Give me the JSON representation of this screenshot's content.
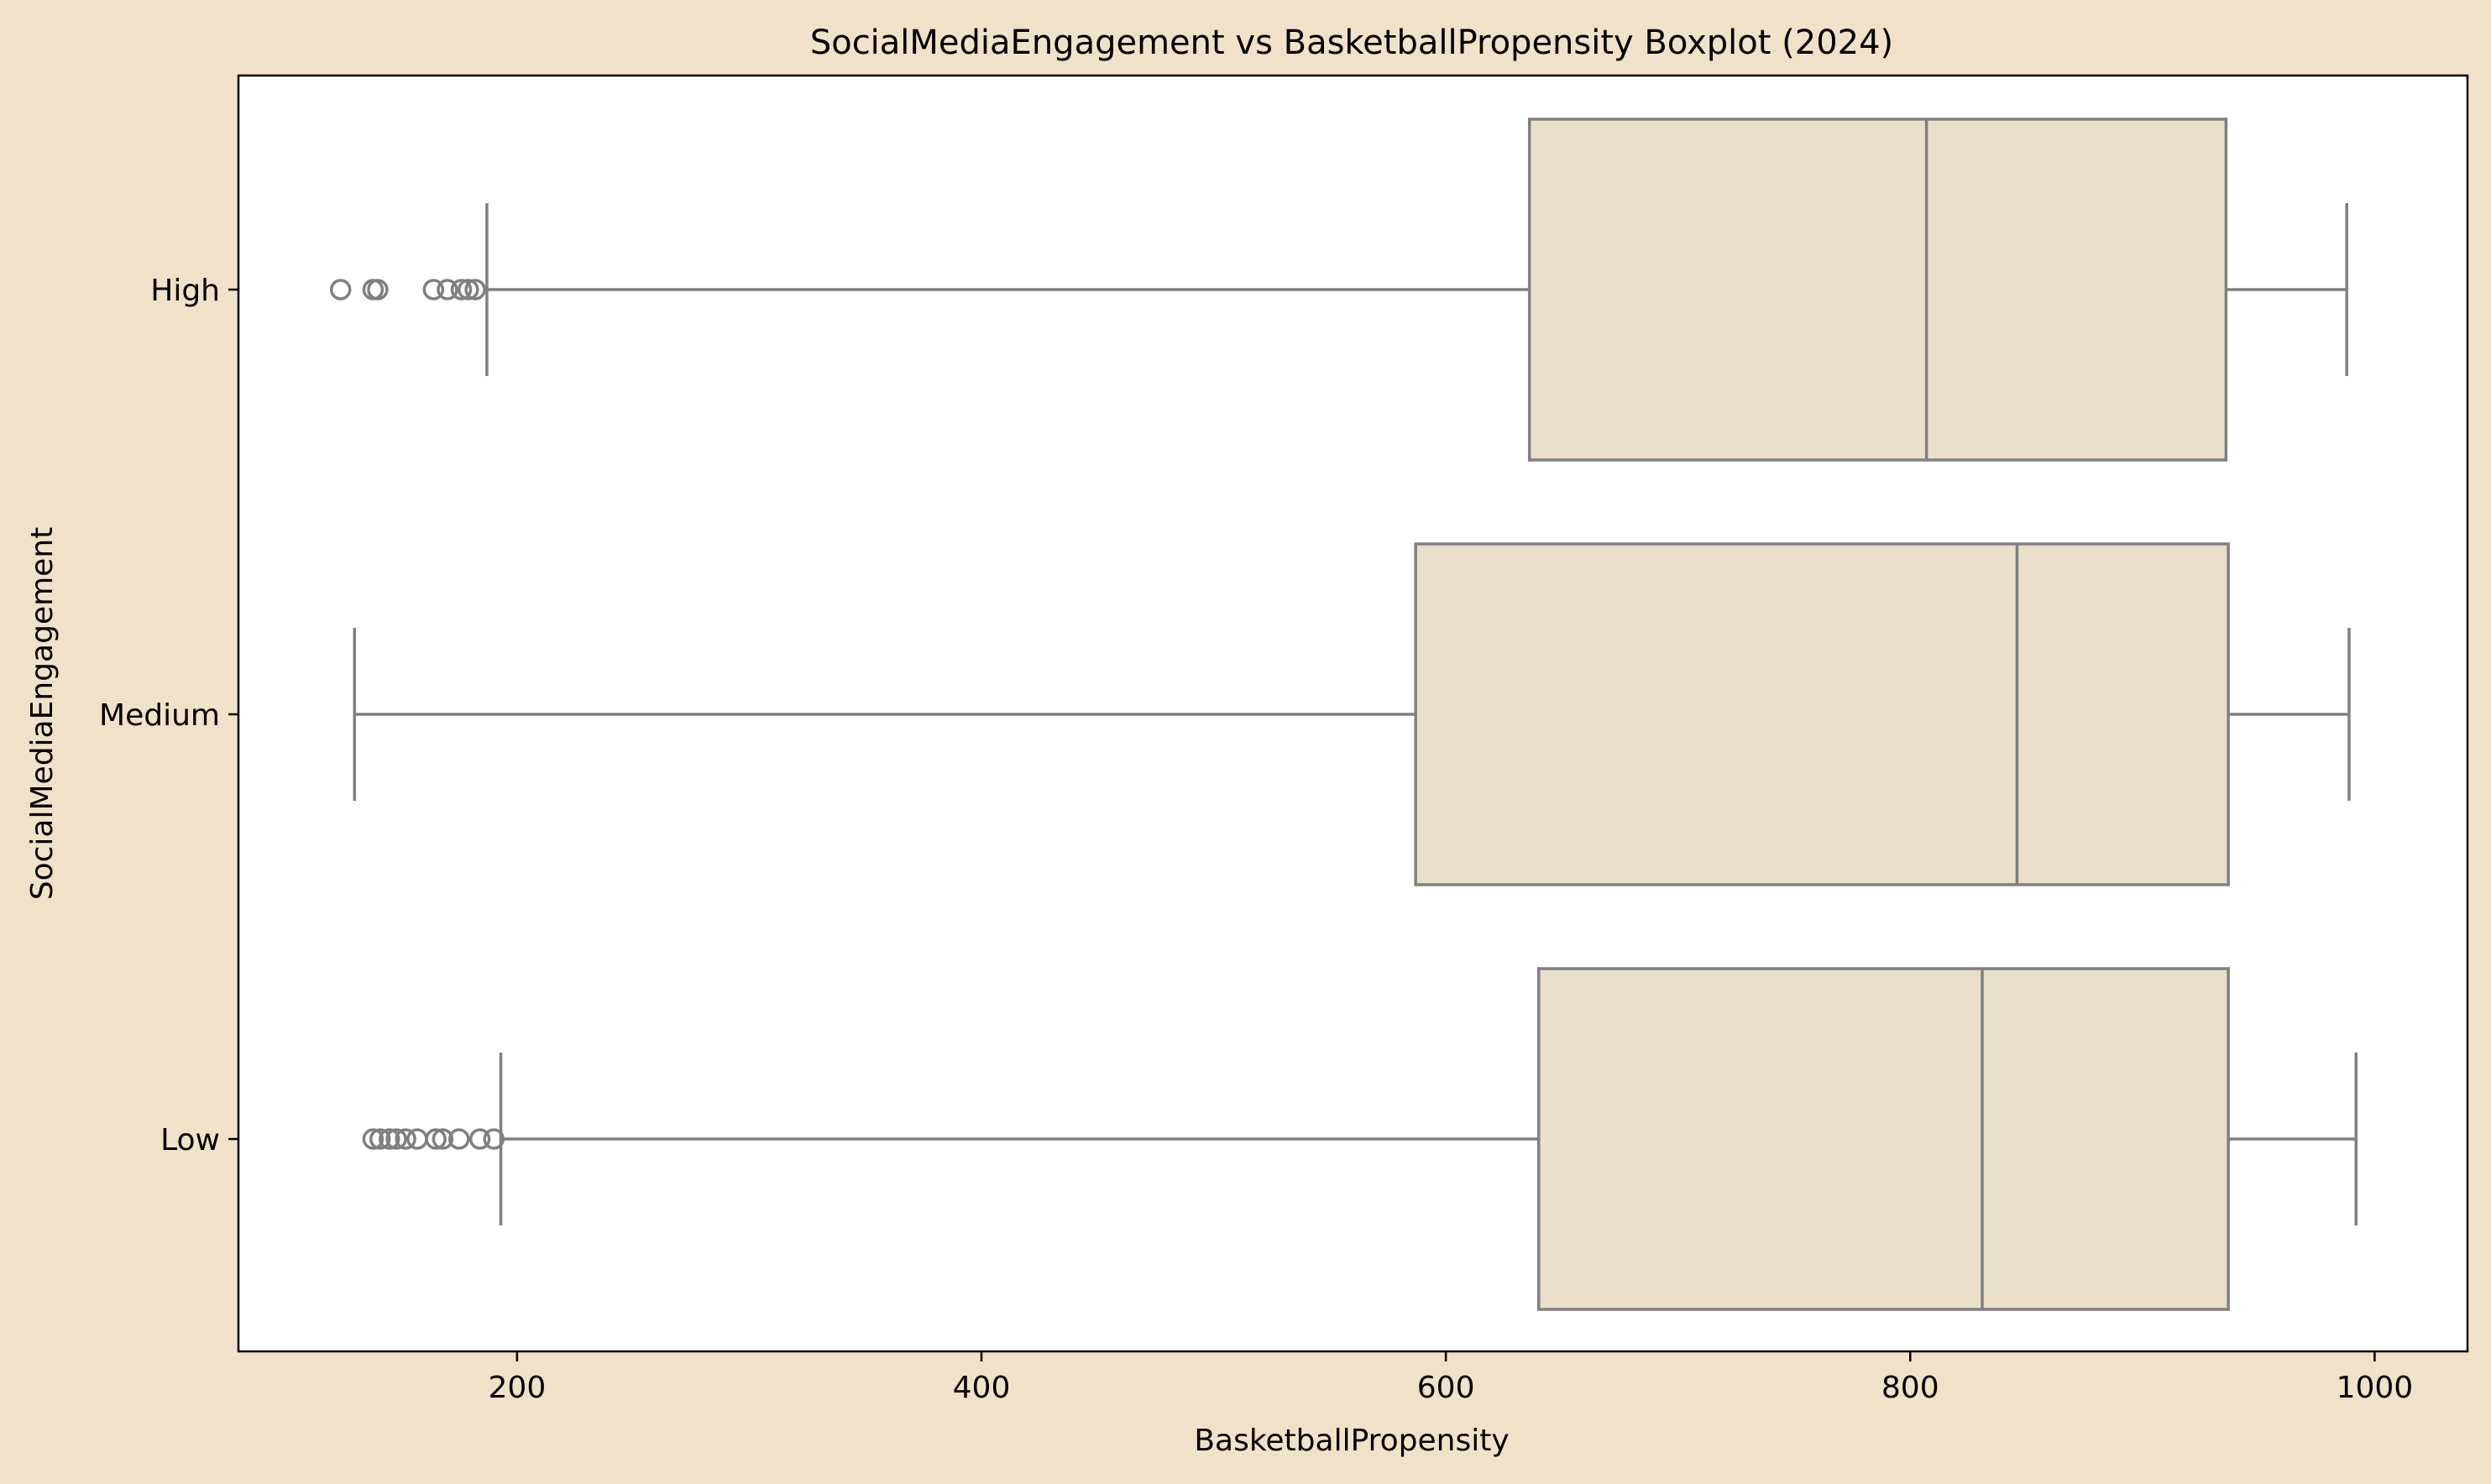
{
  "colors": {
    "figure_background": "#f0e2c8",
    "plot_background": "#ffffff",
    "box_fill": "#eadfc9",
    "box_line": "#808080",
    "axis": "#000000"
  },
  "chart_data": {
    "type": "boxplot",
    "orientation": "horizontal",
    "title": "SocialMediaEngagement vs BasketballPropensity Boxplot (2024)",
    "xlabel": "BasketballPropensity",
    "ylabel": "SocialMediaEngagement",
    "xlim": [
      80,
      1040
    ],
    "xticks": [
      200,
      400,
      600,
      800,
      1000
    ],
    "xtick_labels": [
      "200",
      "400",
      "600",
      "800",
      "1000"
    ],
    "grid": false,
    "legend": "none",
    "categories": [
      "High",
      "Medium",
      "Low"
    ],
    "boxes": [
      {
        "category": "High",
        "whisker_low": 187,
        "q1": 636,
        "median": 807,
        "q3": 936,
        "whisker_high": 988,
        "outliers": [
          124,
          138,
          140,
          164,
          170,
          176,
          179,
          182
        ]
      },
      {
        "category": "Medium",
        "whisker_low": 130,
        "q1": 587,
        "median": 846,
        "q3": 937,
        "whisker_high": 989,
        "outliers": []
      },
      {
        "category": "Low",
        "whisker_low": 193,
        "q1": 640,
        "median": 831,
        "q3": 937,
        "whisker_high": 992,
        "outliers": [
          138,
          141,
          145,
          148,
          152,
          157,
          165,
          168,
          175,
          184,
          190
        ]
      }
    ]
  }
}
